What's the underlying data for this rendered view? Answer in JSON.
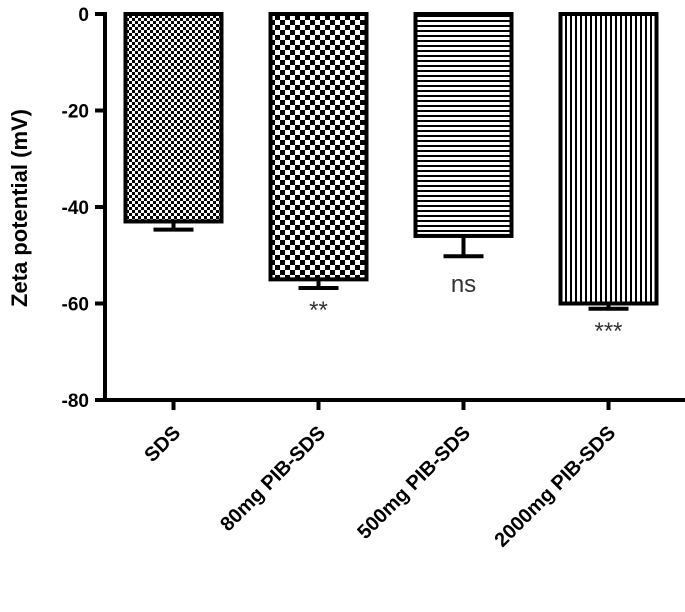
{
  "chart_data": {
    "type": "bar",
    "title": "",
    "xlabel": "",
    "ylabel": "Zeta potential (mV)",
    "ylim": [
      -80,
      0
    ],
    "yticks": [
      0,
      -20,
      -40,
      -60,
      -80
    ],
    "grid": false,
    "categories": [
      "SDS",
      "80mg PIB-SDS",
      "500mg PIB-SDS",
      "2000mg PIB-SDS"
    ],
    "values": [
      -43,
      -55,
      -46,
      -60
    ],
    "errors": [
      1.7,
      1.8,
      4.2,
      1.1
    ],
    "significance": [
      "",
      "**",
      "ns",
      "***"
    ],
    "patterns": [
      "fine-checker",
      "coarse-checker",
      "horizontal-lines",
      "vertical-lines"
    ]
  }
}
